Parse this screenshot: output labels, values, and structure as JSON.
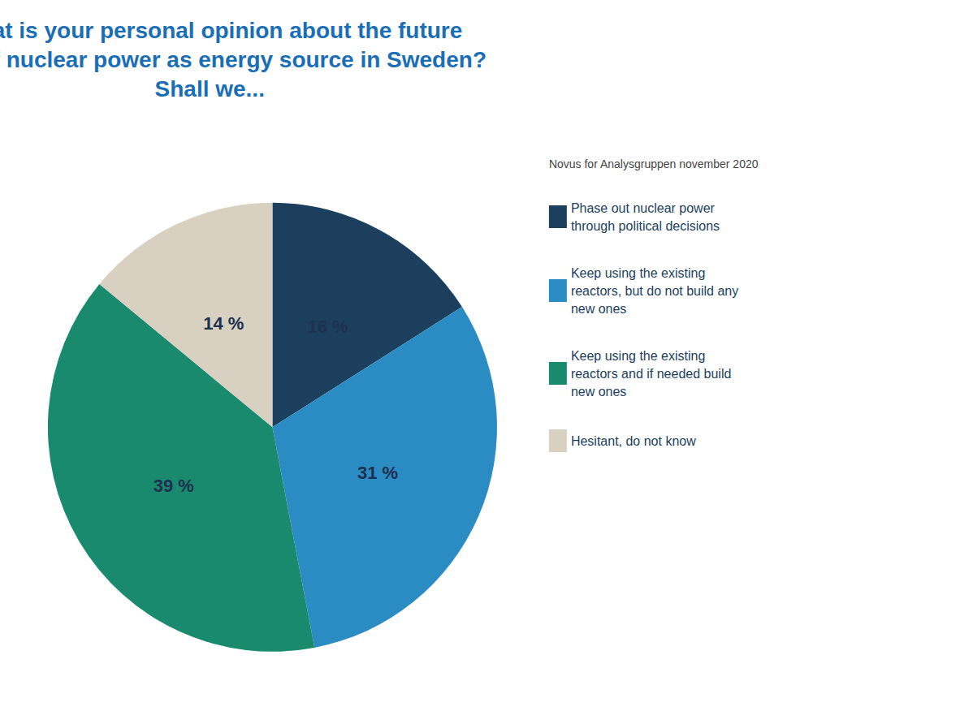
{
  "chart_data": {
    "type": "pie",
    "title": "What is your personal opinion about the future\nuse of nuclear power as energy source in Sweden?\nShall we...",
    "subtitle": "Novus for Analysgruppen november 2020",
    "categories": [
      "Phase out nuclear power\nthrough political decisions",
      "Keep using the existing\nreactors, but do not build any\nnew ones",
      "Keep using the existing\nreactors and if needed build\nnew ones",
      "Hesitant, do not know"
    ],
    "values": [
      16,
      31,
      39,
      14
    ],
    "value_labels": [
      "16 %",
      "31 %",
      "39 %",
      "14 %"
    ],
    "colors": [
      "#1c3f5e",
      "#2b8cc4",
      "#1a8a6e",
      "#d8d0c0"
    ],
    "data_labels": true,
    "legend": "right"
  }
}
